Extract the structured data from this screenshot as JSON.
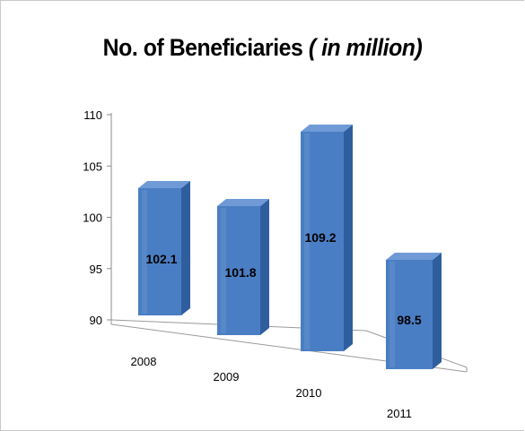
{
  "chart_data": {
    "type": "bar",
    "title": "No. of Beneficiaries",
    "subtitle": "( in million)",
    "categories": [
      "2008",
      "2009",
      "2010",
      "2011"
    ],
    "values": [
      102.1,
      101.8,
      109.2,
      98.5
    ],
    "data_labels": [
      "102.1",
      "101.8",
      "109.2",
      "98.5"
    ],
    "ylim": [
      90,
      110
    ],
    "yticks": [
      "90",
      "95",
      "100",
      "105",
      "110"
    ],
    "xlabel": "",
    "ylabel": "",
    "grid": false,
    "legend": "none",
    "style": "3d-column",
    "colors": {
      "bar_front": "#4a7ec4",
      "bar_side": "#2f5e9f",
      "bar_top": "#6f9ad6"
    }
  }
}
